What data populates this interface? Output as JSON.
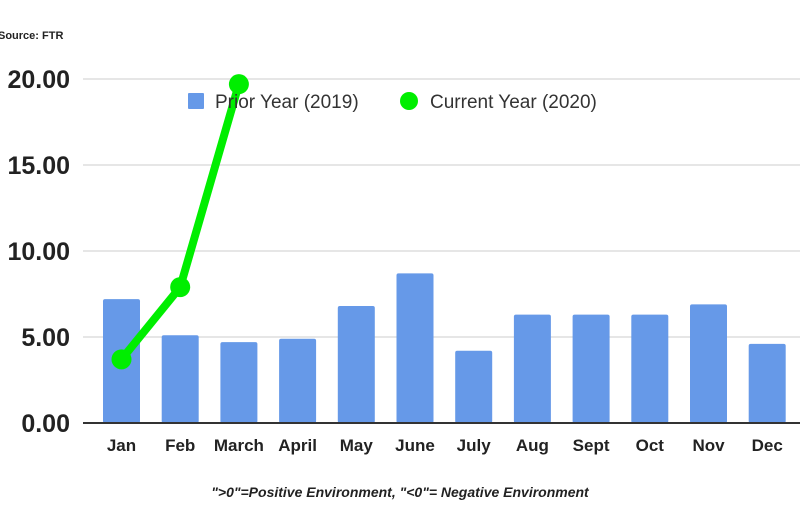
{
  "source": "Source: FTR",
  "note": "\">0\"=Positive Environment, \"<0\"= Negative Environment",
  "colors": {
    "prior_year": "#6699e8",
    "current_year": "#00ee00",
    "gridline": "#cccccc",
    "axis": "#333333"
  },
  "legend": [
    {
      "label": "Prior Year (2019)",
      "marker": "square",
      "color": "#6699e8"
    },
    {
      "label": "Current Year (2020)",
      "marker": "circle",
      "color": "#00ee00"
    }
  ],
  "chart_data": {
    "type": "bar",
    "title": "",
    "xlabel": "",
    "ylabel": "",
    "ylim": [
      0,
      20
    ],
    "yticks": [
      0,
      5,
      10,
      15,
      20
    ],
    "ytick_labels": [
      "0.00",
      "5.00",
      "10.00",
      "15.00",
      "20.00"
    ],
    "grid": true,
    "legend_position": "top",
    "categories": [
      "Jan",
      "Feb",
      "March",
      "April",
      "May",
      "June",
      "July",
      "Aug",
      "Sept",
      "Oct",
      "Nov",
      "Dec"
    ],
    "series": [
      {
        "name": "Prior Year (2019)",
        "type": "bar",
        "color": "#6699e8",
        "values": [
          7.2,
          5.1,
          4.7,
          4.9,
          6.8,
          8.7,
          4.2,
          6.3,
          6.3,
          6.3,
          6.9,
          4.6
        ]
      },
      {
        "name": "Current Year (2020)",
        "type": "line",
        "color": "#00ee00",
        "values": [
          3.7,
          7.9,
          19.7,
          null,
          null,
          null,
          null,
          null,
          null,
          null,
          null,
          null
        ]
      }
    ],
    "annotations": [
      "Source: FTR",
      "\">0\"=Positive Environment, \"<0\"= Negative Environment"
    ]
  }
}
